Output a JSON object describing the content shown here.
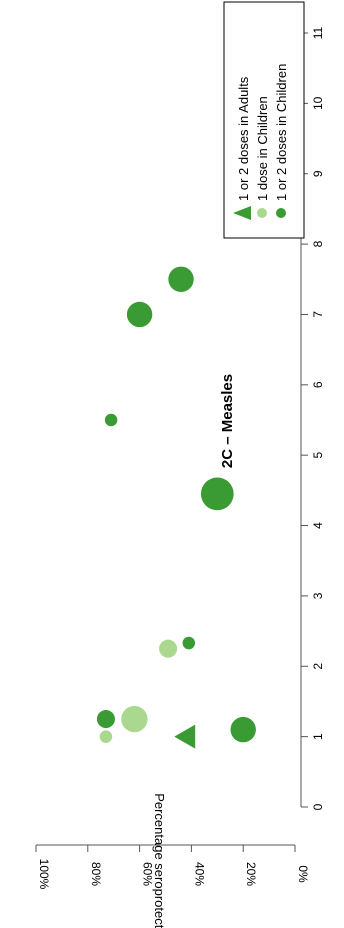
{
  "chart_data": {
    "type": "scatter",
    "title": "2C – Measles",
    "ylabel": "Percentage seroprotected",
    "xlabel": "",
    "xlim": [
      0,
      11
    ],
    "ylim": [
      0,
      100
    ],
    "x_ticks": [
      "0",
      "1",
      "2",
      "3",
      "4",
      "5",
      "6",
      "7",
      "8",
      "9",
      "10",
      "11"
    ],
    "y_ticks": [
      "0%",
      "20%",
      "40%",
      "60%",
      "80%",
      "100%"
    ],
    "orientation": "rotated-90-counterclockwise",
    "legend": {
      "placement": "top-right",
      "entries": [
        {
          "label": "1 or 2 doses in Adults",
          "marker": "triangle",
          "color": "#3a9a34"
        },
        {
          "label": "1 dose in Children",
          "marker": "circle",
          "color": "#aad88f"
        },
        {
          "label": "1 or 2 doses in Children",
          "marker": "circle",
          "color": "#3a9a34"
        }
      ]
    },
    "series": [
      {
        "name": "1 or 2 doses in Adults",
        "marker": "triangle",
        "color": "#3a9a34",
        "points": [
          {
            "x": 1.0,
            "y": 42,
            "size": 1.5
          }
        ]
      },
      {
        "name": "1 dose in Children",
        "marker": "circle",
        "color": "#aad88f",
        "points": [
          {
            "x": 1.0,
            "y": 73,
            "size": 0.6
          },
          {
            "x": 1.25,
            "y": 62,
            "size": 2.1
          },
          {
            "x": 2.25,
            "y": 49,
            "size": 1.2
          }
        ]
      },
      {
        "name": "1 or 2 doses in Children",
        "marker": "circle",
        "color": "#3a9a34",
        "points": [
          {
            "x": 1.1,
            "y": 20,
            "size": 2.0
          },
          {
            "x": 1.25,
            "y": 73,
            "size": 1.2
          },
          {
            "x": 2.33,
            "y": 41,
            "size": 0.6
          },
          {
            "x": 4.45,
            "y": 30,
            "size": 2.8
          },
          {
            "x": 5.5,
            "y": 71,
            "size": 0.6
          },
          {
            "x": 7.0,
            "y": 60,
            "size": 2.0
          },
          {
            "x": 7.5,
            "y": 44,
            "size": 2.0
          }
        ]
      }
    ]
  }
}
